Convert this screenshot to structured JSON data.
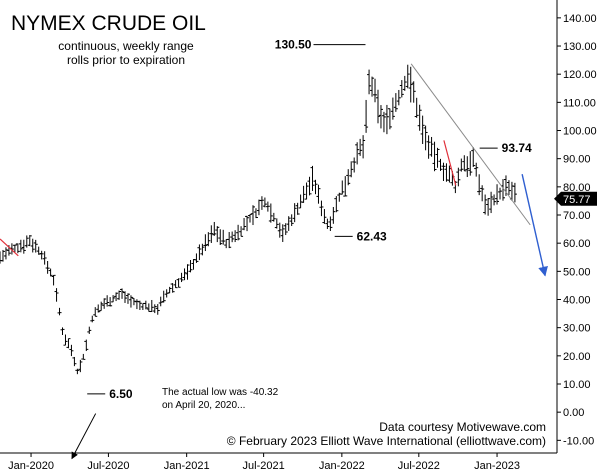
{
  "chart_data": {
    "type": "ohlc",
    "title": "NYMEX CRUDE OIL",
    "subtitle_lines": [
      "continuous, weekly range",
      "rolls prior to expiration"
    ],
    "y_ticks": [
      "140.00",
      "130.00",
      "120.00",
      "110.00",
      "100.00",
      "90.00",
      "80.00",
      "70.00",
      "60.00",
      "50.00",
      "40.00",
      "30.00",
      "20.00",
      "10.00",
      "0.00",
      "-10.00"
    ],
    "y_tick_values": [
      140,
      130,
      120,
      110,
      100,
      90,
      80,
      70,
      60,
      50,
      40,
      30,
      20,
      10,
      0,
      -10
    ],
    "ylim": [
      -14.5,
      143.5
    ],
    "x_ticks": [
      "Jan-2020",
      "Jul-2020",
      "Jan-2021",
      "Jul-2021",
      "Jan-2022",
      "Jul-2022",
      "Jan-2023"
    ],
    "x_tick_dates": [
      "2020-01-01",
      "2020-07-01",
      "2021-01-01",
      "2021-07-01",
      "2022-01-01",
      "2022-07-01",
      "2023-01-01"
    ],
    "xlim": [
      "2019-10-20",
      "2023-05-22"
    ],
    "last_price": "75.77",
    "annotations": [
      {
        "label": "130.50",
        "date": "2022-03-07",
        "value": 130.5
      },
      {
        "label": "93.74",
        "date": "2022-11-07",
        "value": 93.74
      },
      {
        "label": "62.43",
        "date": "2021-12-01",
        "value": 62.43
      },
      {
        "label": "6.50",
        "date": "2020-04-28",
        "value": 6.5
      }
    ],
    "note_lines": [
      "The actual low was -40.32",
      "on April 20, 2020..."
    ],
    "footer_lines": [
      "Data courtesy Motivewave.com",
      "© February 2023 Elliott Wave International (elliottwave.com)"
    ],
    "trendline": [
      {
        "date": "2022-06-13",
        "value": 123.7
      },
      {
        "date": "2023-03-20",
        "value": 66.5
      }
    ],
    "red_lines": [
      [
        {
          "date": "2019-10-20",
          "value": 61.5
        },
        {
          "date": "2019-12-02",
          "value": 55.5
        }
      ],
      [
        {
          "date": "2022-08-29",
          "value": 96.5
        },
        {
          "date": "2022-09-26",
          "value": 80.5
        }
      ]
    ],
    "projection_arrow": [
      {
        "date": "2023-03-01",
        "value": 84.5
      },
      {
        "date": "2023-04-24",
        "value": 48.5
      }
    ],
    "note_arrow": [
      {
        "date": "2020-06-01",
        "value": -0.5
      },
      {
        "date": "2020-04-06",
        "value": -16.5
      }
    ],
    "weekly_anchors": [
      [
        "2019-10-20",
        55
      ],
      [
        "2019-12-30",
        61
      ],
      [
        "2020-01-27",
        56
      ],
      [
        "2020-02-24",
        47
      ],
      [
        "2020-03-16",
        28
      ],
      [
        "2020-04-06",
        22
      ],
      [
        "2020-04-20",
        14
      ],
      [
        "2020-05-04",
        20
      ],
      [
        "2020-05-25",
        34
      ],
      [
        "2020-06-22",
        39
      ],
      [
        "2020-08-03",
        42
      ],
      [
        "2020-09-07",
        38
      ],
      [
        "2020-10-26",
        37
      ],
      [
        "2020-11-09",
        41
      ],
      [
        "2021-01-04",
        50
      ],
      [
        "2021-03-08",
        65
      ],
      [
        "2021-04-05",
        60
      ],
      [
        "2021-05-10",
        65
      ],
      [
        "2021-07-05",
        75
      ],
      [
        "2021-08-16",
        63
      ],
      [
        "2021-10-25",
        83
      ],
      [
        "2021-11-29",
        66
      ],
      [
        "2022-01-24",
        87
      ],
      [
        "2022-02-21",
        95
      ],
      [
        "2022-03-07",
        118
      ],
      [
        "2022-04-11",
        102
      ],
      [
        "2022-05-16",
        112
      ],
      [
        "2022-06-06",
        120
      ],
      [
        "2022-07-11",
        100
      ],
      [
        "2022-08-01",
        92
      ],
      [
        "2022-09-05",
        85
      ],
      [
        "2022-09-26",
        80
      ],
      [
        "2022-10-10",
        88
      ],
      [
        "2022-11-07",
        89
      ],
      [
        "2022-12-05",
        73
      ],
      [
        "2023-01-09",
        78
      ],
      [
        "2023-01-23",
        80
      ],
      [
        "2023-02-13",
        77
      ]
    ]
  }
}
